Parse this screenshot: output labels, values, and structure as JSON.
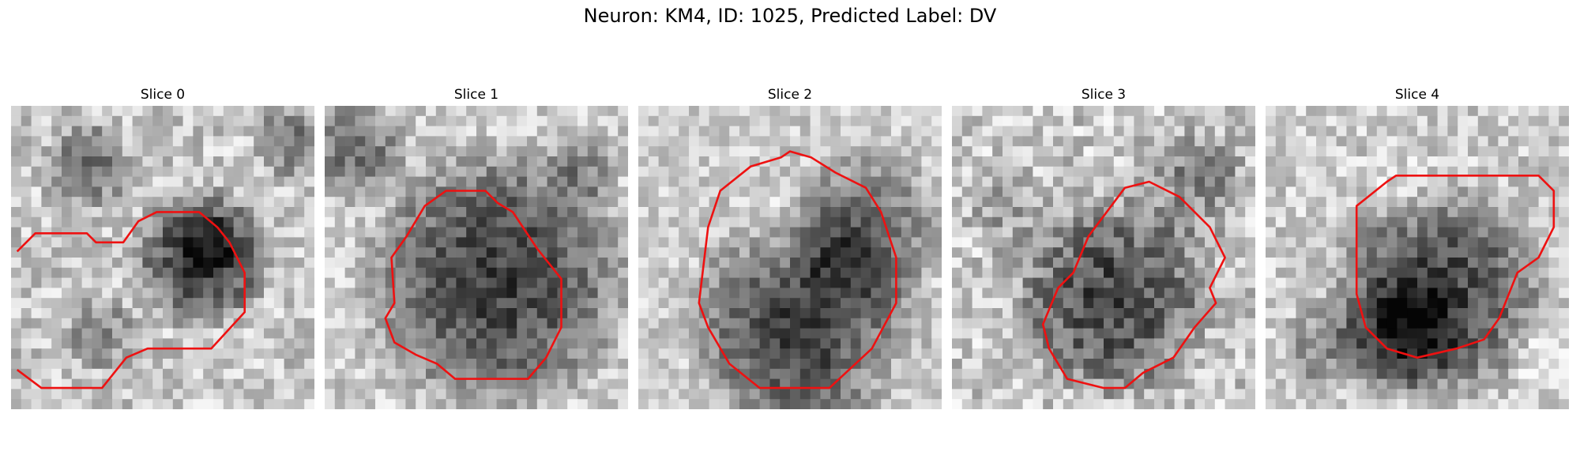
{
  "figure": {
    "title": "Neuron: KM4, ID: 1025, Predicted Label: DV",
    "contour_color": "#ee1111"
  },
  "panels": [
    {
      "title": "Slice 0",
      "icon": "grayscale-microscopy-slice-with-red-outline"
    },
    {
      "title": "Slice 1",
      "icon": "grayscale-microscopy-slice-with-red-outline"
    },
    {
      "title": "Slice 2",
      "icon": "grayscale-microscopy-slice-with-red-outline"
    },
    {
      "title": "Slice 3",
      "icon": "grayscale-microscopy-slice-with-red-outline"
    },
    {
      "title": "Slice 4",
      "icon": "grayscale-microscopy-slice-with-red-outline"
    }
  ]
}
